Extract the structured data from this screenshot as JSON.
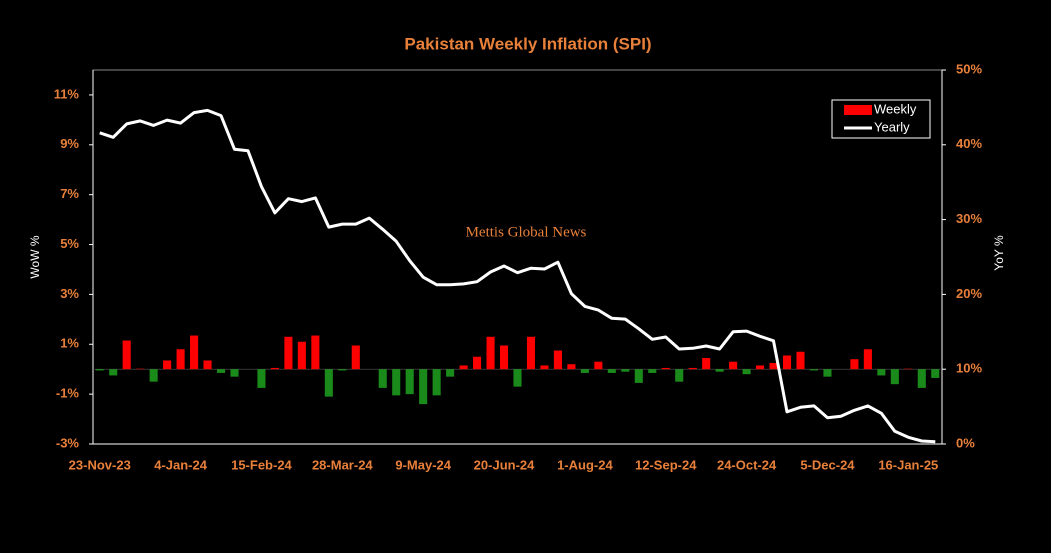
{
  "chart_data": {
    "type": "bar-line",
    "title": "Pakistan Weekly Inflation (SPI)",
    "annotation": "Mettis Global News",
    "ylabel": "WoW %",
    "y2label": "YoY %",
    "categories": [
      "23-Nov-23",
      null,
      null,
      null,
      null,
      null,
      "4-Jan-24",
      null,
      null,
      null,
      null,
      null,
      "15-Feb-24",
      null,
      null,
      null,
      null,
      null,
      "28-Mar-24",
      null,
      null,
      null,
      null,
      null,
      "9-May-24",
      null,
      null,
      null,
      null,
      null,
      "20-Jun-24",
      null,
      null,
      null,
      null,
      null,
      "1-Aug-24",
      null,
      null,
      null,
      null,
      null,
      "12-Sep-24",
      null,
      null,
      null,
      null,
      null,
      "24-Oct-24",
      null,
      null,
      null,
      null,
      null,
      "5-Dec-24",
      null,
      null,
      null,
      null,
      null,
      "16-Jan-25",
      null,
      null
    ],
    "series": [
      {
        "name": "Weekly",
        "type": "bar",
        "color": "#ff0000",
        "negative_color": "#1a8a1a",
        "values": [
          -0.05,
          -0.25,
          1.15,
          0.02,
          -0.5,
          0.35,
          0.8,
          1.35,
          0.35,
          -0.15,
          -0.3,
          0,
          -0.75,
          0.05,
          1.3,
          1.1,
          1.35,
          -1.1,
          -0.05,
          0.95,
          0,
          -0.75,
          -1.05,
          -1.0,
          -1.4,
          -1.05,
          -0.3,
          0.15,
          0.5,
          1.3,
          0.95,
          -0.7,
          1.3,
          0.15,
          0.75,
          0.2,
          -0.15,
          0.3,
          -0.15,
          -0.1,
          -0.55,
          -0.15,
          0.05,
          -0.5,
          0.05,
          0.45,
          -0.1,
          0.3,
          -0.2,
          0.15,
          0.25,
          0.55,
          0.7,
          -0.05,
          -0.3,
          0,
          0.4,
          0.8,
          -0.25,
          -0.6,
          0.02,
          -0.75,
          -0.35
        ]
      },
      {
        "name": "Yearly",
        "type": "line",
        "axis": "y2",
        "color": "#ffffff",
        "values": [
          41.6,
          41.0,
          42.8,
          43.2,
          42.6,
          43.3,
          42.9,
          44.3,
          44.6,
          43.9,
          39.4,
          39.2,
          34.4,
          30.9,
          32.8,
          32.4,
          32.9,
          29.0,
          29.4,
          29.4,
          30.2,
          28.7,
          27.1,
          24.5,
          22.3,
          21.3,
          21.3,
          21.4,
          21.7,
          23.0,
          23.8,
          22.9,
          23.5,
          23.4,
          24.3,
          20.1,
          18.4,
          17.9,
          16.8,
          16.7,
          15.4,
          14.0,
          14.3,
          12.7,
          12.8,
          13.1,
          12.7,
          15.0,
          15.1,
          14.4,
          13.8,
          4.3,
          4.9,
          5.1,
          3.5,
          3.7,
          4.5,
          5.1,
          4.1,
          1.7,
          0.9,
          0.4,
          0.3
        ]
      }
    ],
    "ylim": [
      -3,
      12
    ],
    "yticks": [
      {
        "value": -3,
        "label": "-3%"
      },
      {
        "value": -1,
        "label": "-1%"
      },
      {
        "value": 1,
        "label": "1%"
      },
      {
        "value": 3,
        "label": "3%"
      },
      {
        "value": 5,
        "label": "5%"
      },
      {
        "value": 7,
        "label": "7%"
      },
      {
        "value": 9,
        "label": "9%"
      },
      {
        "value": 11,
        "label": "11%"
      }
    ],
    "y2lim": [
      0,
      50
    ],
    "y2ticks": [
      {
        "value": 0,
        "label": "0%"
      },
      {
        "value": 10,
        "label": "10%"
      },
      {
        "value": 20,
        "label": "20%"
      },
      {
        "value": 30,
        "label": "30%"
      },
      {
        "value": 40,
        "label": "40%"
      },
      {
        "value": 50,
        "label": "50%"
      }
    ],
    "grid": false,
    "legend": "upper right"
  }
}
